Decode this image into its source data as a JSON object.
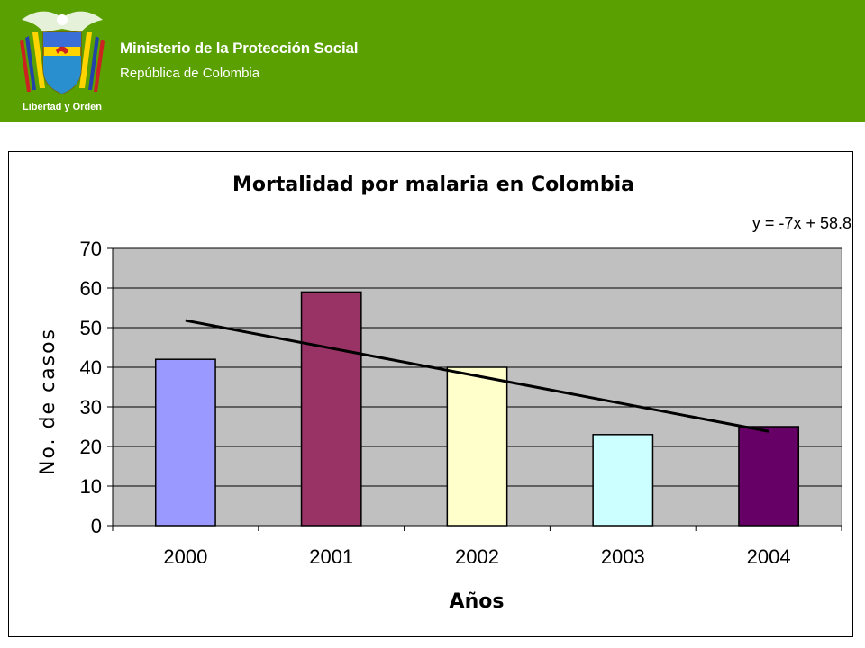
{
  "header": {
    "background_color": "#5aa000",
    "ministry": "Ministerio de la Protección Social",
    "country": "República de Colombia",
    "logo": {
      "icon": "colombia-coat-of-arms-icon",
      "motto": "Libertad y Orden"
    }
  },
  "chart_data": {
    "type": "bar",
    "title": "Mortalidad por malaria en Colombia",
    "xlabel": "Años",
    "ylabel": "No. de casos",
    "categories": [
      "2000",
      "2001",
      "2002",
      "2003",
      "2004"
    ],
    "values": [
      42,
      59,
      40,
      23,
      25
    ],
    "colors": [
      "#9999ff",
      "#993366",
      "#ffffcc",
      "#ccffff",
      "#660066"
    ],
    "ylim": [
      0,
      70
    ],
    "yticks": [
      0,
      10,
      20,
      30,
      40,
      50,
      60,
      70
    ],
    "grid": true,
    "plot_background": "#c0c0c0",
    "legend": "none",
    "trendline": {
      "type": "linear",
      "equation": "y = -7x + 58.8",
      "slope": -7,
      "intercept": 58.8,
      "color": "#000000"
    }
  }
}
